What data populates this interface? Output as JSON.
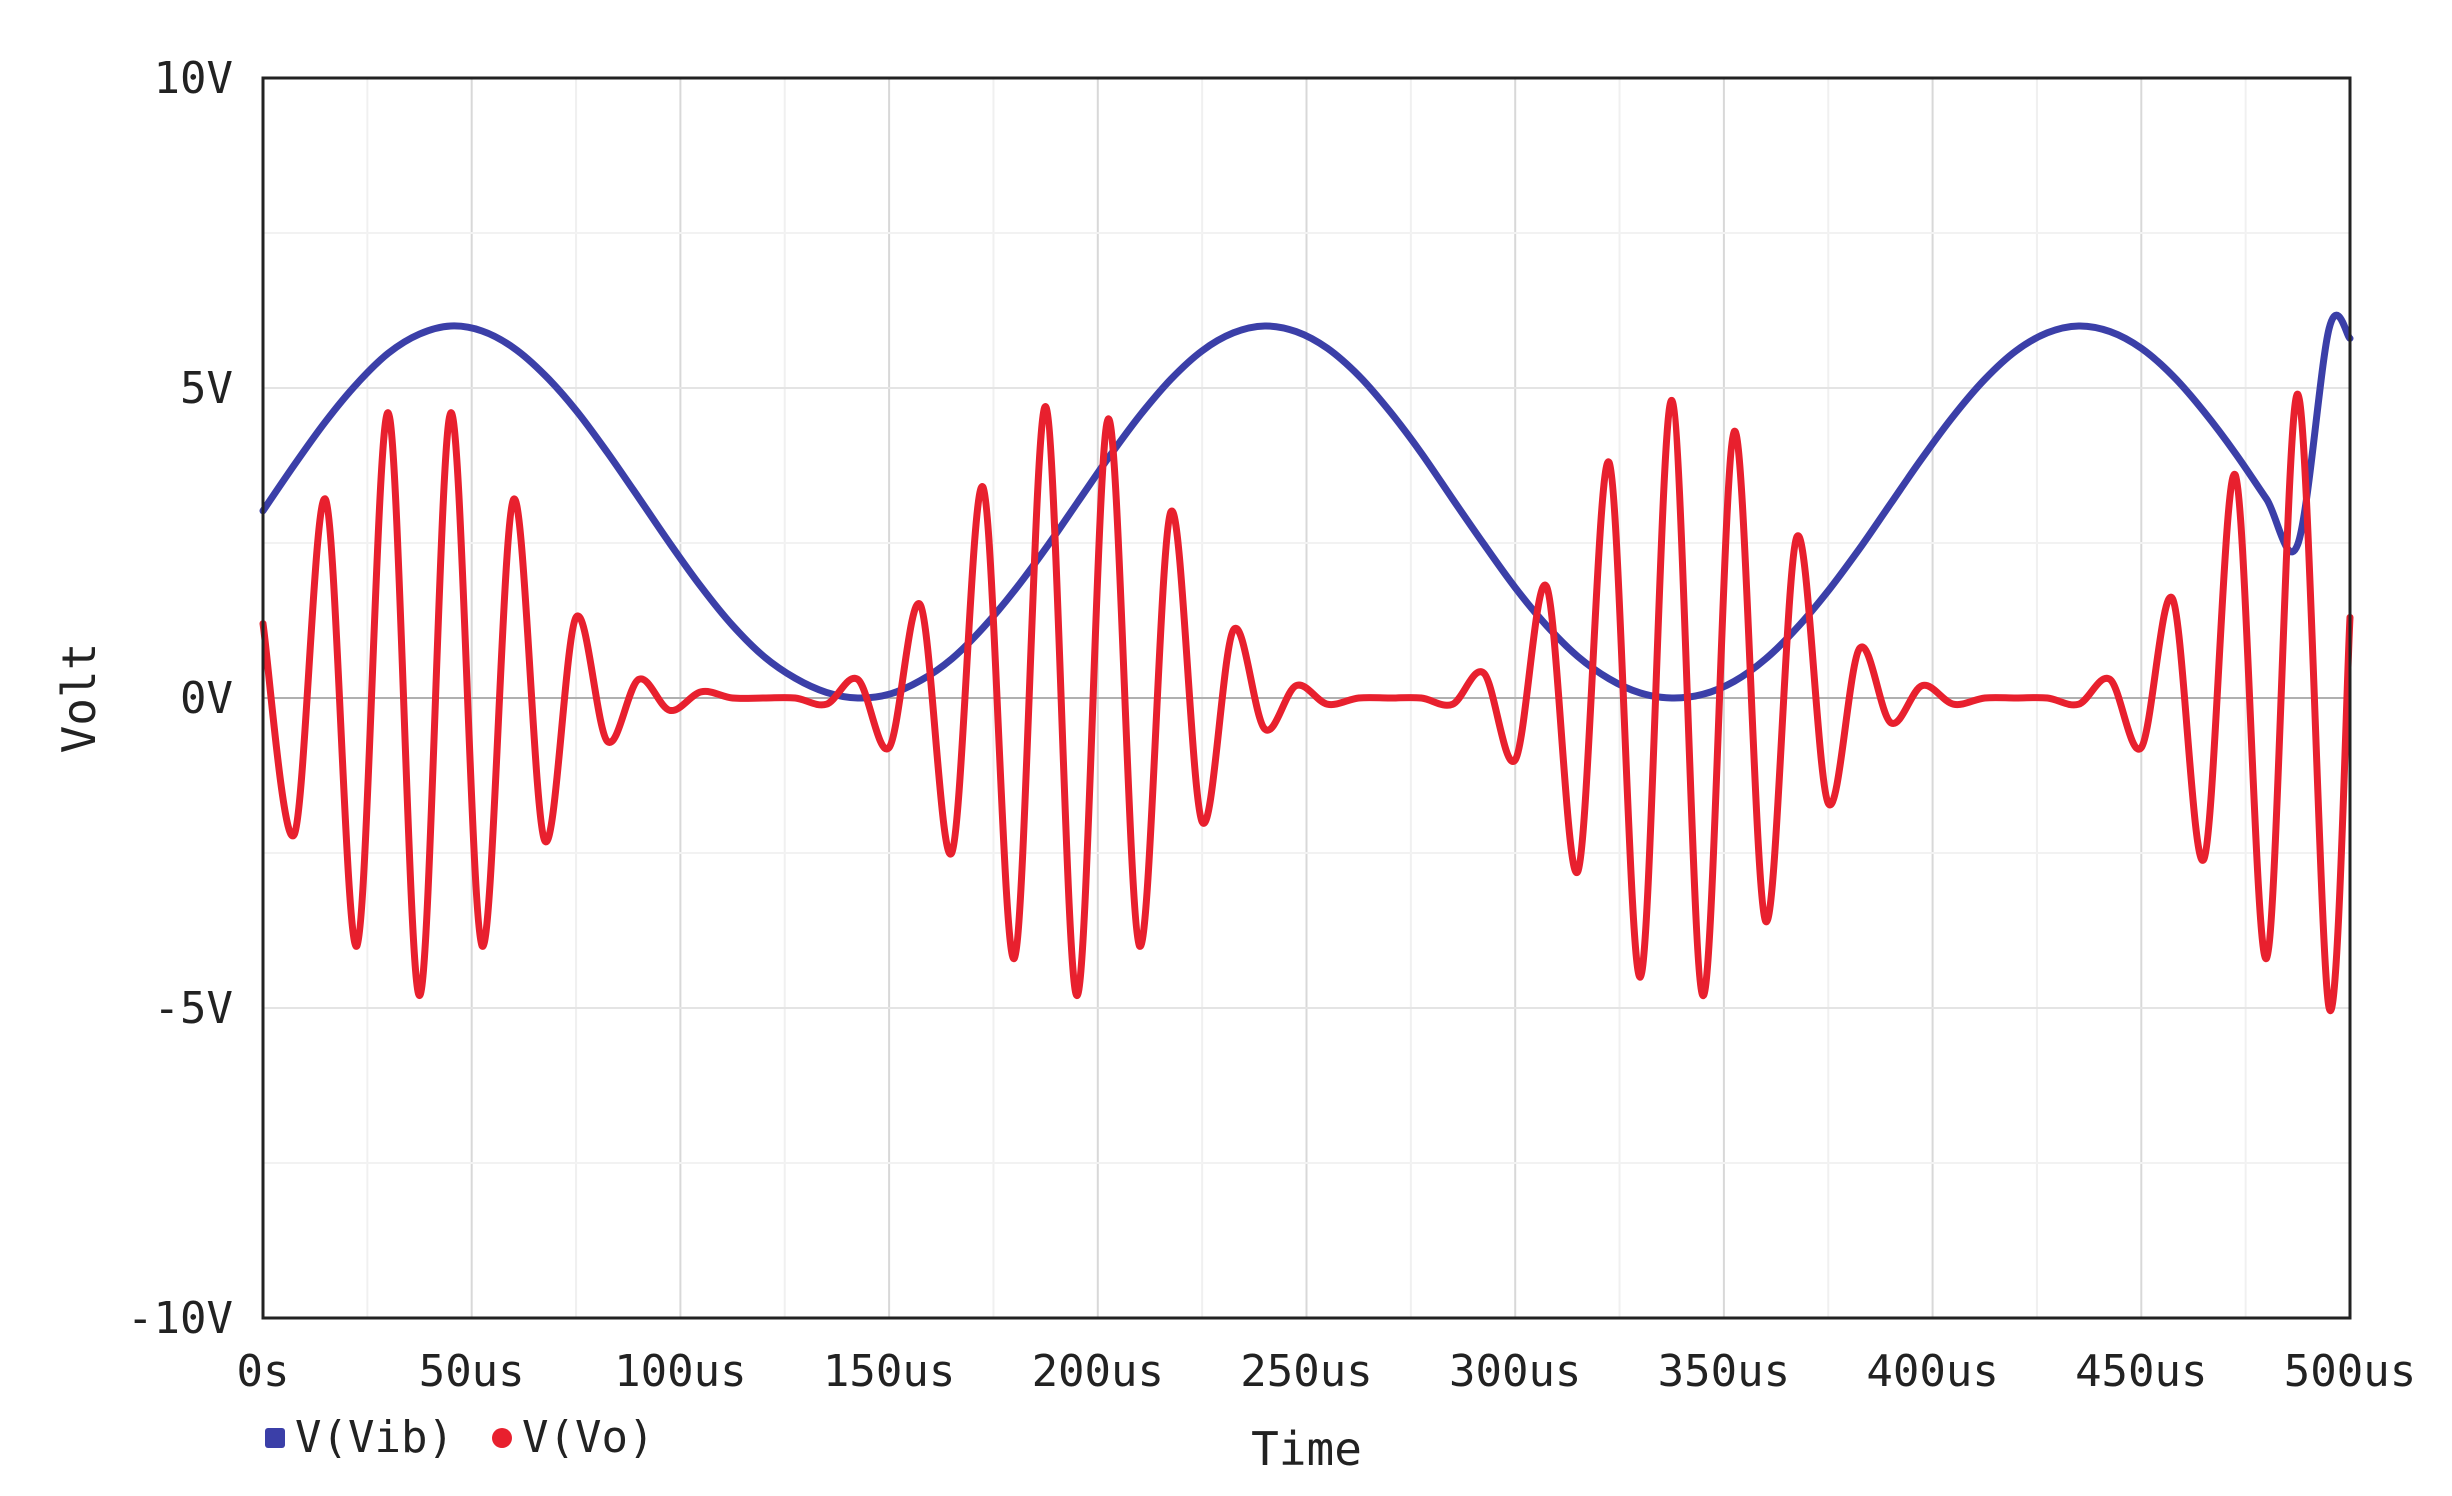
{
  "chart_data": {
    "type": "line",
    "title": "",
    "xlabel": "Time",
    "ylabel": "Volt",
    "xlim": [
      0,
      500
    ],
    "ylim": [
      -10,
      10
    ],
    "x_unit": "us",
    "y_unit": "V",
    "grid": true,
    "legend_position": "bottom-left",
    "x_ticks": [
      {
        "value": 0,
        "label": "0s"
      },
      {
        "value": 50,
        "label": "50us"
      },
      {
        "value": 100,
        "label": "100us"
      },
      {
        "value": 150,
        "label": "150us"
      },
      {
        "value": 200,
        "label": "200us"
      },
      {
        "value": 250,
        "label": "250us"
      },
      {
        "value": 300,
        "label": "300us"
      },
      {
        "value": 350,
        "label": "350us"
      },
      {
        "value": 400,
        "label": "400us"
      },
      {
        "value": 450,
        "label": "450us"
      },
      {
        "value": 500,
        "label": "500us"
      }
    ],
    "y_ticks": [
      {
        "value": 10,
        "label": "10V"
      },
      {
        "value": 5,
        "label": "5V"
      },
      {
        "value": 0,
        "label": "0V"
      },
      {
        "value": -5,
        "label": "-5V"
      },
      {
        "value": -10,
        "label": "-10V"
      }
    ],
    "series": [
      {
        "name": "V(Vib)",
        "color": "#3b3fa8",
        "x": [
          0,
          7.5,
          15,
          22.5,
          30,
          37.5,
          45,
          52.5,
          60,
          67.5,
          75,
          82.5,
          90,
          97.5,
          105,
          112.5,
          120,
          127.5,
          135,
          142.5,
          150,
          157.5,
          165,
          172.5,
          180,
          187.5,
          195,
          202.5,
          210,
          217.5,
          225,
          232.5,
          240,
          247.5,
          255,
          262.5,
          270,
          277.5,
          285,
          292.5,
          300,
          307.5,
          315,
          322.5,
          330,
          337.5,
          345,
          352.5,
          360,
          367.5,
          375,
          382.5,
          390,
          397.5,
          405,
          412.5,
          420,
          427.5,
          435,
          442.5,
          450,
          457.5,
          465,
          472.5,
          480,
          487.5,
          495,
          500
        ],
        "y": [
          3.02,
          3.76,
          4.46,
          5.07,
          5.56,
          5.87,
          6.0,
          5.92,
          5.65,
          5.21,
          4.64,
          3.96,
          3.23,
          2.49,
          1.79,
          1.17,
          0.67,
          0.32,
          0.09,
          0.0,
          0.06,
          0.28,
          0.63,
          1.13,
          1.73,
          2.41,
          3.14,
          3.87,
          4.55,
          5.14,
          5.6,
          5.89,
          6.0,
          5.91,
          5.64,
          5.2,
          4.62,
          3.95,
          3.21,
          2.48,
          1.78,
          1.17,
          0.67,
          0.31,
          0.08,
          0.0,
          0.06,
          0.27,
          0.63,
          1.13,
          1.73,
          2.41,
          3.14,
          3.87,
          4.55,
          5.14,
          5.6,
          5.89,
          6.0,
          5.91,
          5.64,
          5.2,
          4.62,
          3.95,
          3.21,
          2.48,
          5.96,
          5.8
        ]
      },
      {
        "name": "V(Vo)",
        "color": "#e8202e",
        "x": [
          0,
          7.5,
          15,
          22.5,
          30,
          37.5,
          45,
          52.5,
          60,
          67.5,
          75,
          82.5,
          90,
          97.5,
          105,
          112.5,
          120,
          127.5,
          135,
          142.5,
          150,
          157.5,
          165,
          172.5,
          180,
          187.5,
          195,
          202.5,
          210,
          217.5,
          225,
          232.5,
          240,
          247.5,
          255,
          262.5,
          270,
          277.5,
          285,
          292.5,
          300,
          307.5,
          315,
          322.5,
          330,
          337.5,
          345,
          352.5,
          360,
          367.5,
          375,
          382.5,
          390,
          397.5,
          405,
          412.5,
          420,
          427.5,
          435,
          442.5,
          450,
          457.5,
          465,
          472.5,
          480,
          487.5,
          495,
          500
        ],
        "y": [
          1.2,
          -2.2,
          3.2,
          -4.0,
          4.6,
          -4.8,
          4.6,
          -4.0,
          3.2,
          -2.3,
          1.3,
          -0.7,
          0.3,
          -0.2,
          0.1,
          0.0,
          0.0,
          0.0,
          -0.1,
          0.3,
          -0.8,
          1.5,
          -2.5,
          3.4,
          -4.2,
          4.7,
          -4.8,
          4.5,
          -4.0,
          3.0,
          -2.0,
          1.1,
          -0.5,
          0.2,
          -0.1,
          0.0,
          0.0,
          0.0,
          -0.1,
          0.4,
          -1.0,
          1.8,
          -2.8,
          3.8,
          -4.5,
          4.8,
          -4.8,
          4.3,
          -3.6,
          2.6,
          -1.7,
          0.8,
          -0.4,
          0.2,
          -0.1,
          0.0,
          0.0,
          0.0,
          -0.1,
          0.3,
          -0.8,
          1.6,
          -2.6,
          3.6,
          -4.2,
          4.9,
          -5.0,
          1.3
        ]
      }
    ]
  }
}
